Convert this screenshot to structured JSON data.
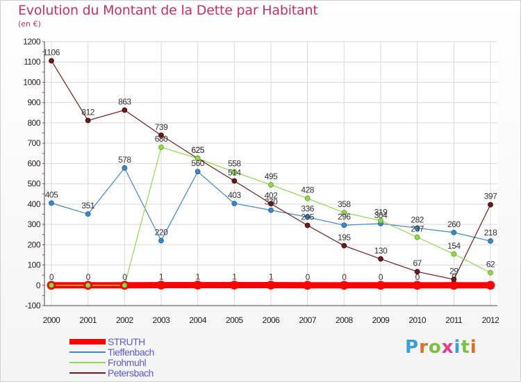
{
  "title": "Evolution du Montant de la Dette par Habitant",
  "subtitle": "(en €)",
  "logo": {
    "text": "Proxiti",
    "letters": [
      {
        "ch": "P",
        "color": "#3aa0d8"
      },
      {
        "ch": "r",
        "color": "#e07020"
      },
      {
        "ch": "o",
        "color": "#7cc242"
      },
      {
        "ch": "x",
        "color": "#e03a8a"
      },
      {
        "ch": "i",
        "color": "#3aa0d8"
      },
      {
        "ch": "t",
        "color": "#7cc242"
      },
      {
        "ch": "i",
        "color": "#e07020"
      }
    ]
  },
  "chart_data": {
    "type": "line",
    "title": "Evolution du Montant de la Dette par Habitant",
    "subtitle": "(en €)",
    "x": [
      2000,
      2001,
      2002,
      2003,
      2004,
      2005,
      2006,
      2007,
      2008,
      2009,
      2010,
      2011,
      2012
    ],
    "ylim": [
      -100,
      1200
    ],
    "yticks": [
      -100,
      0,
      100,
      200,
      300,
      400,
      500,
      600,
      700,
      800,
      900,
      1000,
      1100,
      1200
    ],
    "grid": true,
    "legend_position": "bottom-left",
    "series": [
      {
        "name": "STRUTH",
        "color": "#ff0000",
        "values": [
          0,
          0,
          0,
          1,
          1,
          1,
          1,
          0,
          0,
          0,
          0,
          0,
          0
        ],
        "labels": [
          "0",
          "0",
          "0",
          "1",
          "1",
          "1",
          "1",
          "0",
          "0",
          "0",
          "0",
          "0",
          ""
        ]
      },
      {
        "name": "Tieffenbach",
        "color": "#3b87c7",
        "values": [
          405,
          351,
          578,
          220,
          560,
          403,
          370,
          336,
          296,
          304,
          282,
          260,
          218
        ],
        "labels": [
          "405",
          "351",
          "578",
          "220",
          "560",
          "403",
          "370",
          "336",
          "296",
          "304",
          "282",
          "260",
          "218"
        ]
      },
      {
        "name": "Frohmuhl",
        "color": "#8fd94a",
        "values": [
          0,
          0,
          0,
          680,
          625,
          558,
          495,
          428,
          358,
          319,
          237,
          154,
          62
        ],
        "labels": [
          "",
          "",
          "",
          "680",
          "625",
          "558",
          "495",
          "428",
          "358",
          "319",
          "237",
          "154",
          "62"
        ]
      },
      {
        "name": "Petersbach",
        "color": "#6b1a1a",
        "values": [
          1106,
          812,
          863,
          739,
          625,
          514,
          402,
          295,
          195,
          130,
          67,
          29,
          397
        ],
        "labels": [
          "1106",
          "812",
          "863",
          "739",
          "625",
          "514",
          "402",
          "295",
          "195",
          "130",
          "67",
          "29",
          "397"
        ]
      }
    ]
  }
}
